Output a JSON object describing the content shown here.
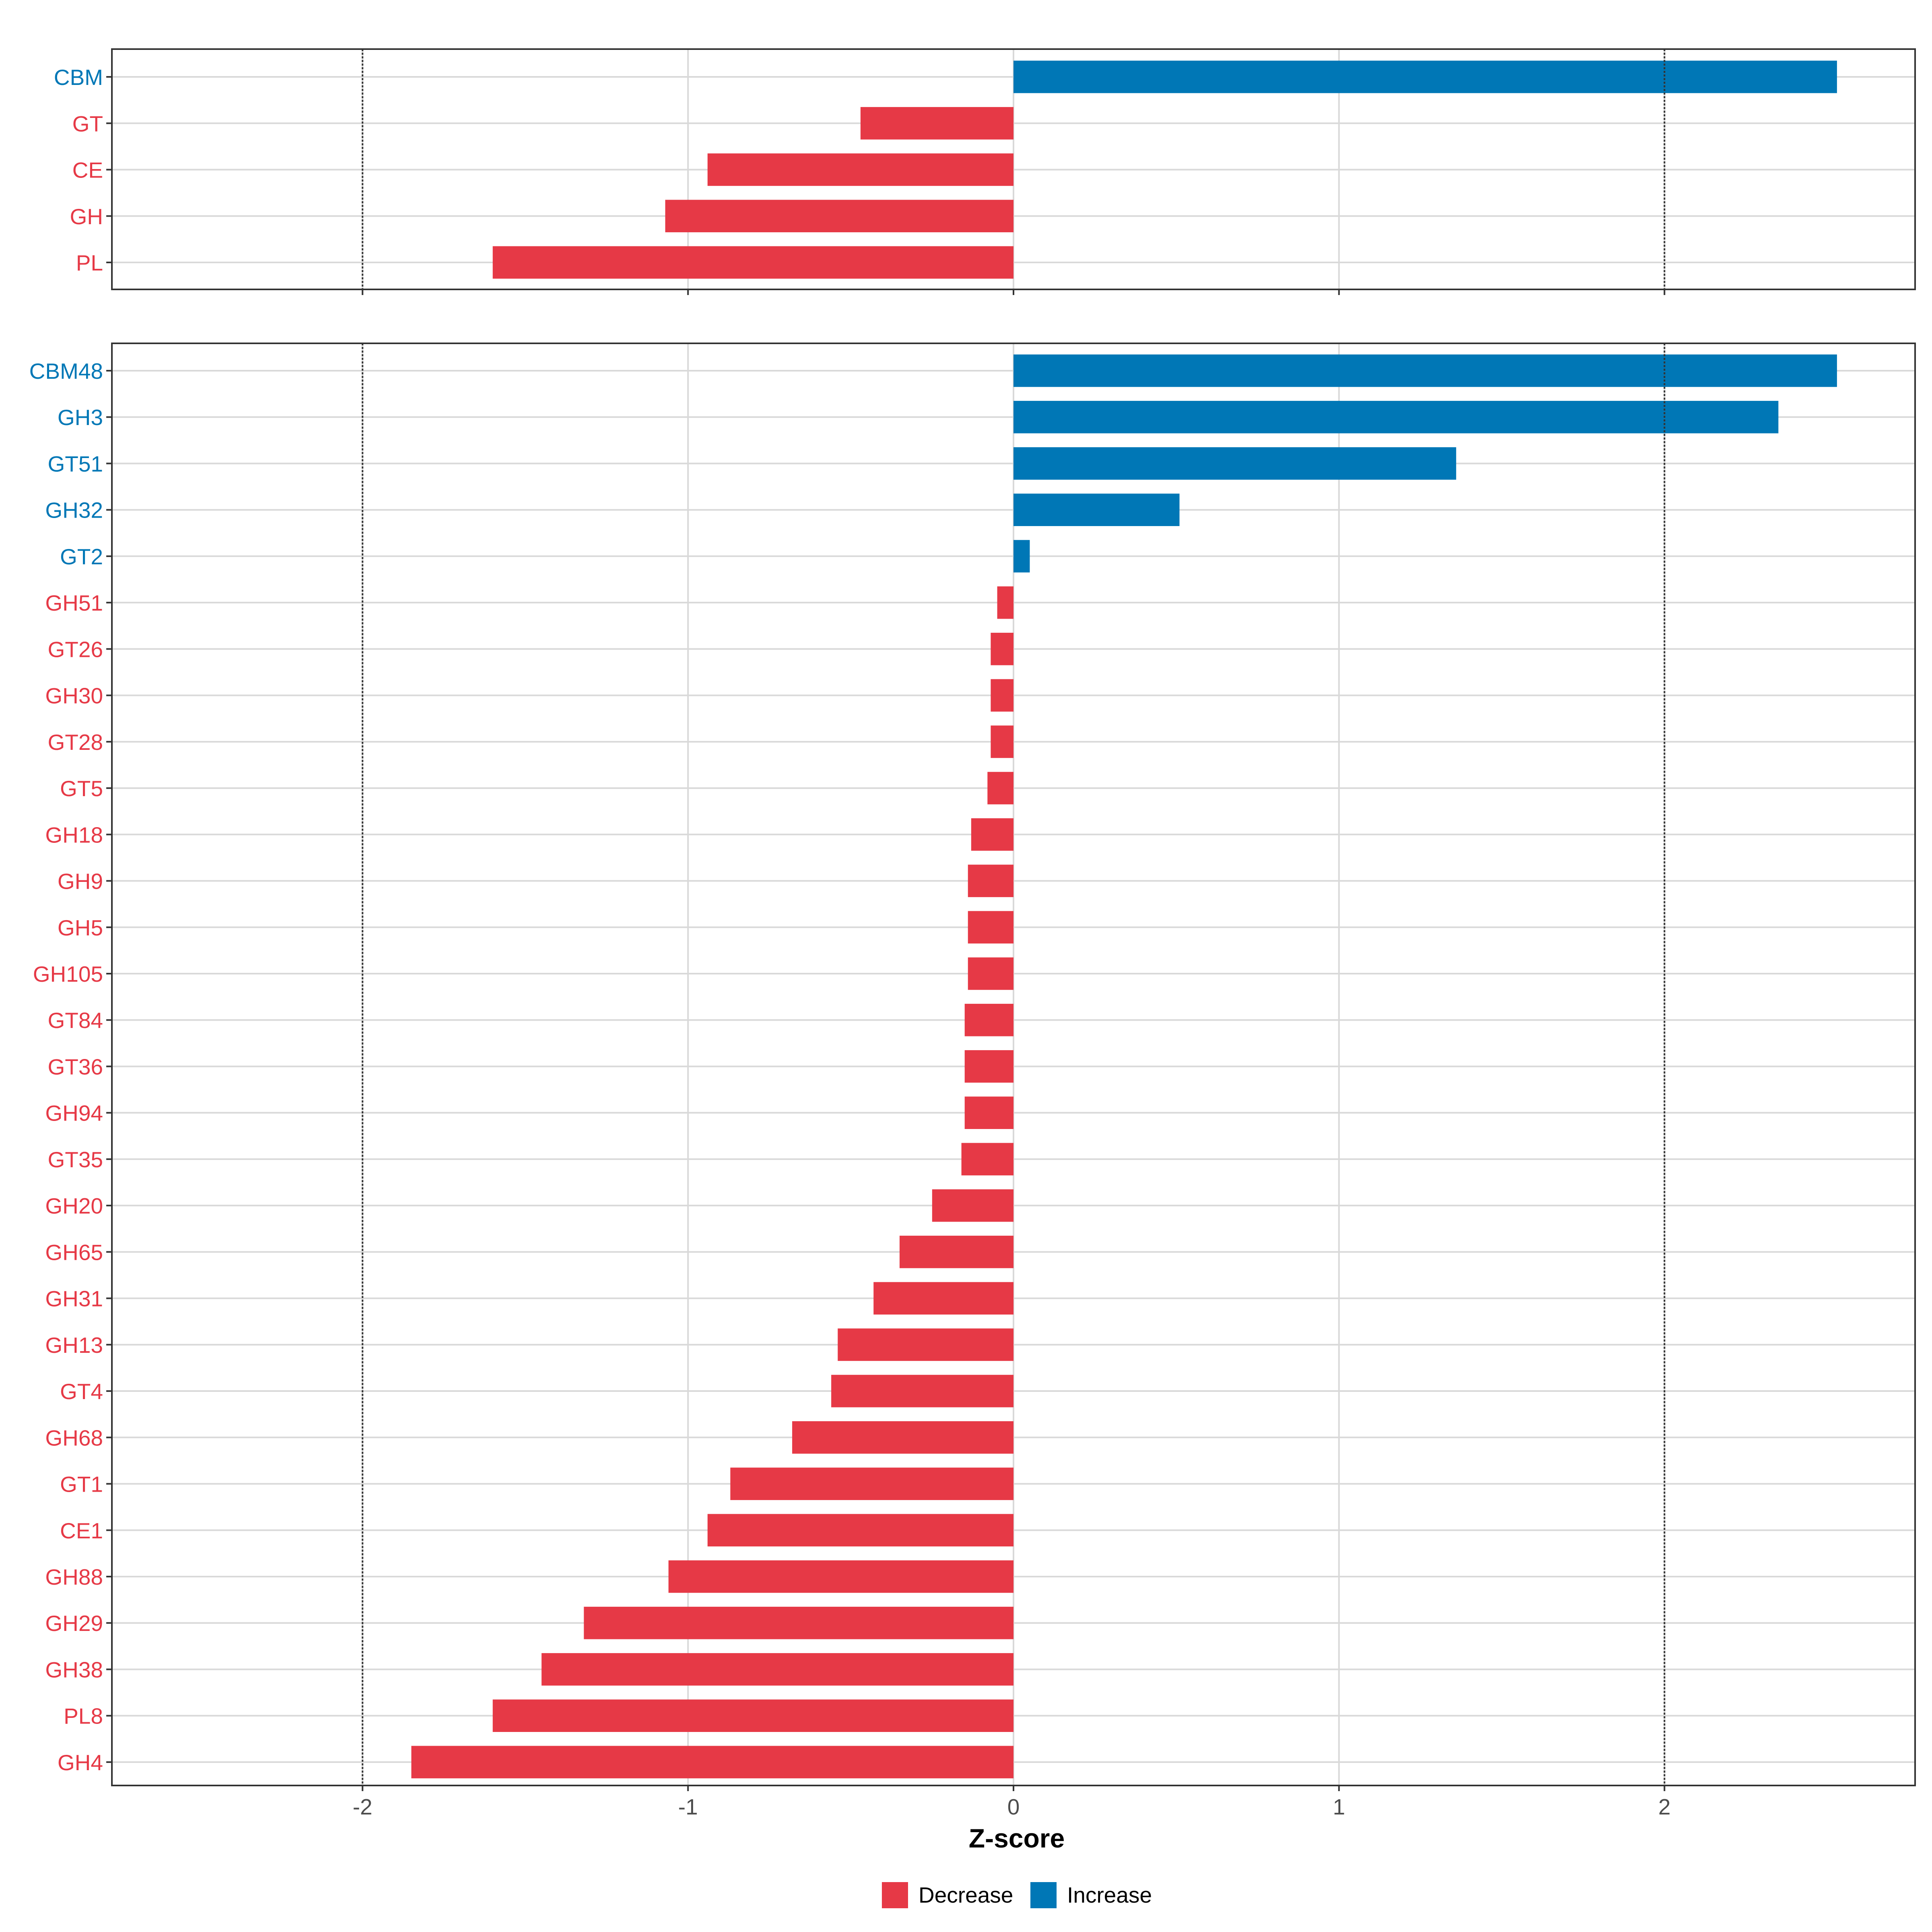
{
  "chart_data": [
    {
      "type": "bar",
      "orientation": "horizontal",
      "panel": "top",
      "categories": [
        "CBM",
        "GT",
        "CE",
        "GH",
        "PL"
      ],
      "values": [
        2.53,
        -0.47,
        -0.94,
        -1.07,
        -1.6
      ],
      "xlim": [
        -2.77,
        2.77
      ],
      "xticks": [
        -2,
        -1,
        0,
        1,
        2
      ],
      "reference_lines": [
        -2,
        2
      ]
    },
    {
      "type": "bar",
      "orientation": "horizontal",
      "panel": "bottom",
      "categories": [
        "CBM48",
        "GH3",
        "GT51",
        "GH32",
        "GT2",
        "GH51",
        "GT26",
        "GH30",
        "GT28",
        "GT5",
        "GH18",
        "GH9",
        "GH5",
        "GH105",
        "GT84",
        "GT36",
        "GH94",
        "GT35",
        "GH20",
        "GH65",
        "GH31",
        "GH13",
        "GT4",
        "GH68",
        "GT1",
        "CE1",
        "GH88",
        "GH29",
        "GH38",
        "PL8",
        "GH4"
      ],
      "values": [
        2.53,
        2.35,
        1.36,
        0.51,
        0.05,
        -0.05,
        -0.07,
        -0.07,
        -0.07,
        -0.08,
        -0.13,
        -0.14,
        -0.14,
        -0.14,
        -0.15,
        -0.15,
        -0.15,
        -0.16,
        -0.25,
        -0.35,
        -0.43,
        -0.54,
        -0.56,
        -0.68,
        -0.87,
        -0.94,
        -1.06,
        -1.32,
        -1.45,
        -1.6,
        -1.85
      ],
      "xlim": [
        -2.77,
        2.77
      ],
      "xticks": [
        "-2",
        "-1",
        "0",
        "1",
        "2"
      ],
      "xlabel": "Z-score",
      "reference_lines": [
        -2,
        2
      ]
    }
  ],
  "legend": {
    "items": [
      {
        "label": "Decrease",
        "color": "#E63946"
      },
      {
        "label": "Increase",
        "color": "#0077B6"
      }
    ],
    "placement": "bottom"
  },
  "colors": {
    "decrease": "#E63946",
    "increase": "#0077B6",
    "grid": "#d9d9d9",
    "reference": "#333333"
  }
}
